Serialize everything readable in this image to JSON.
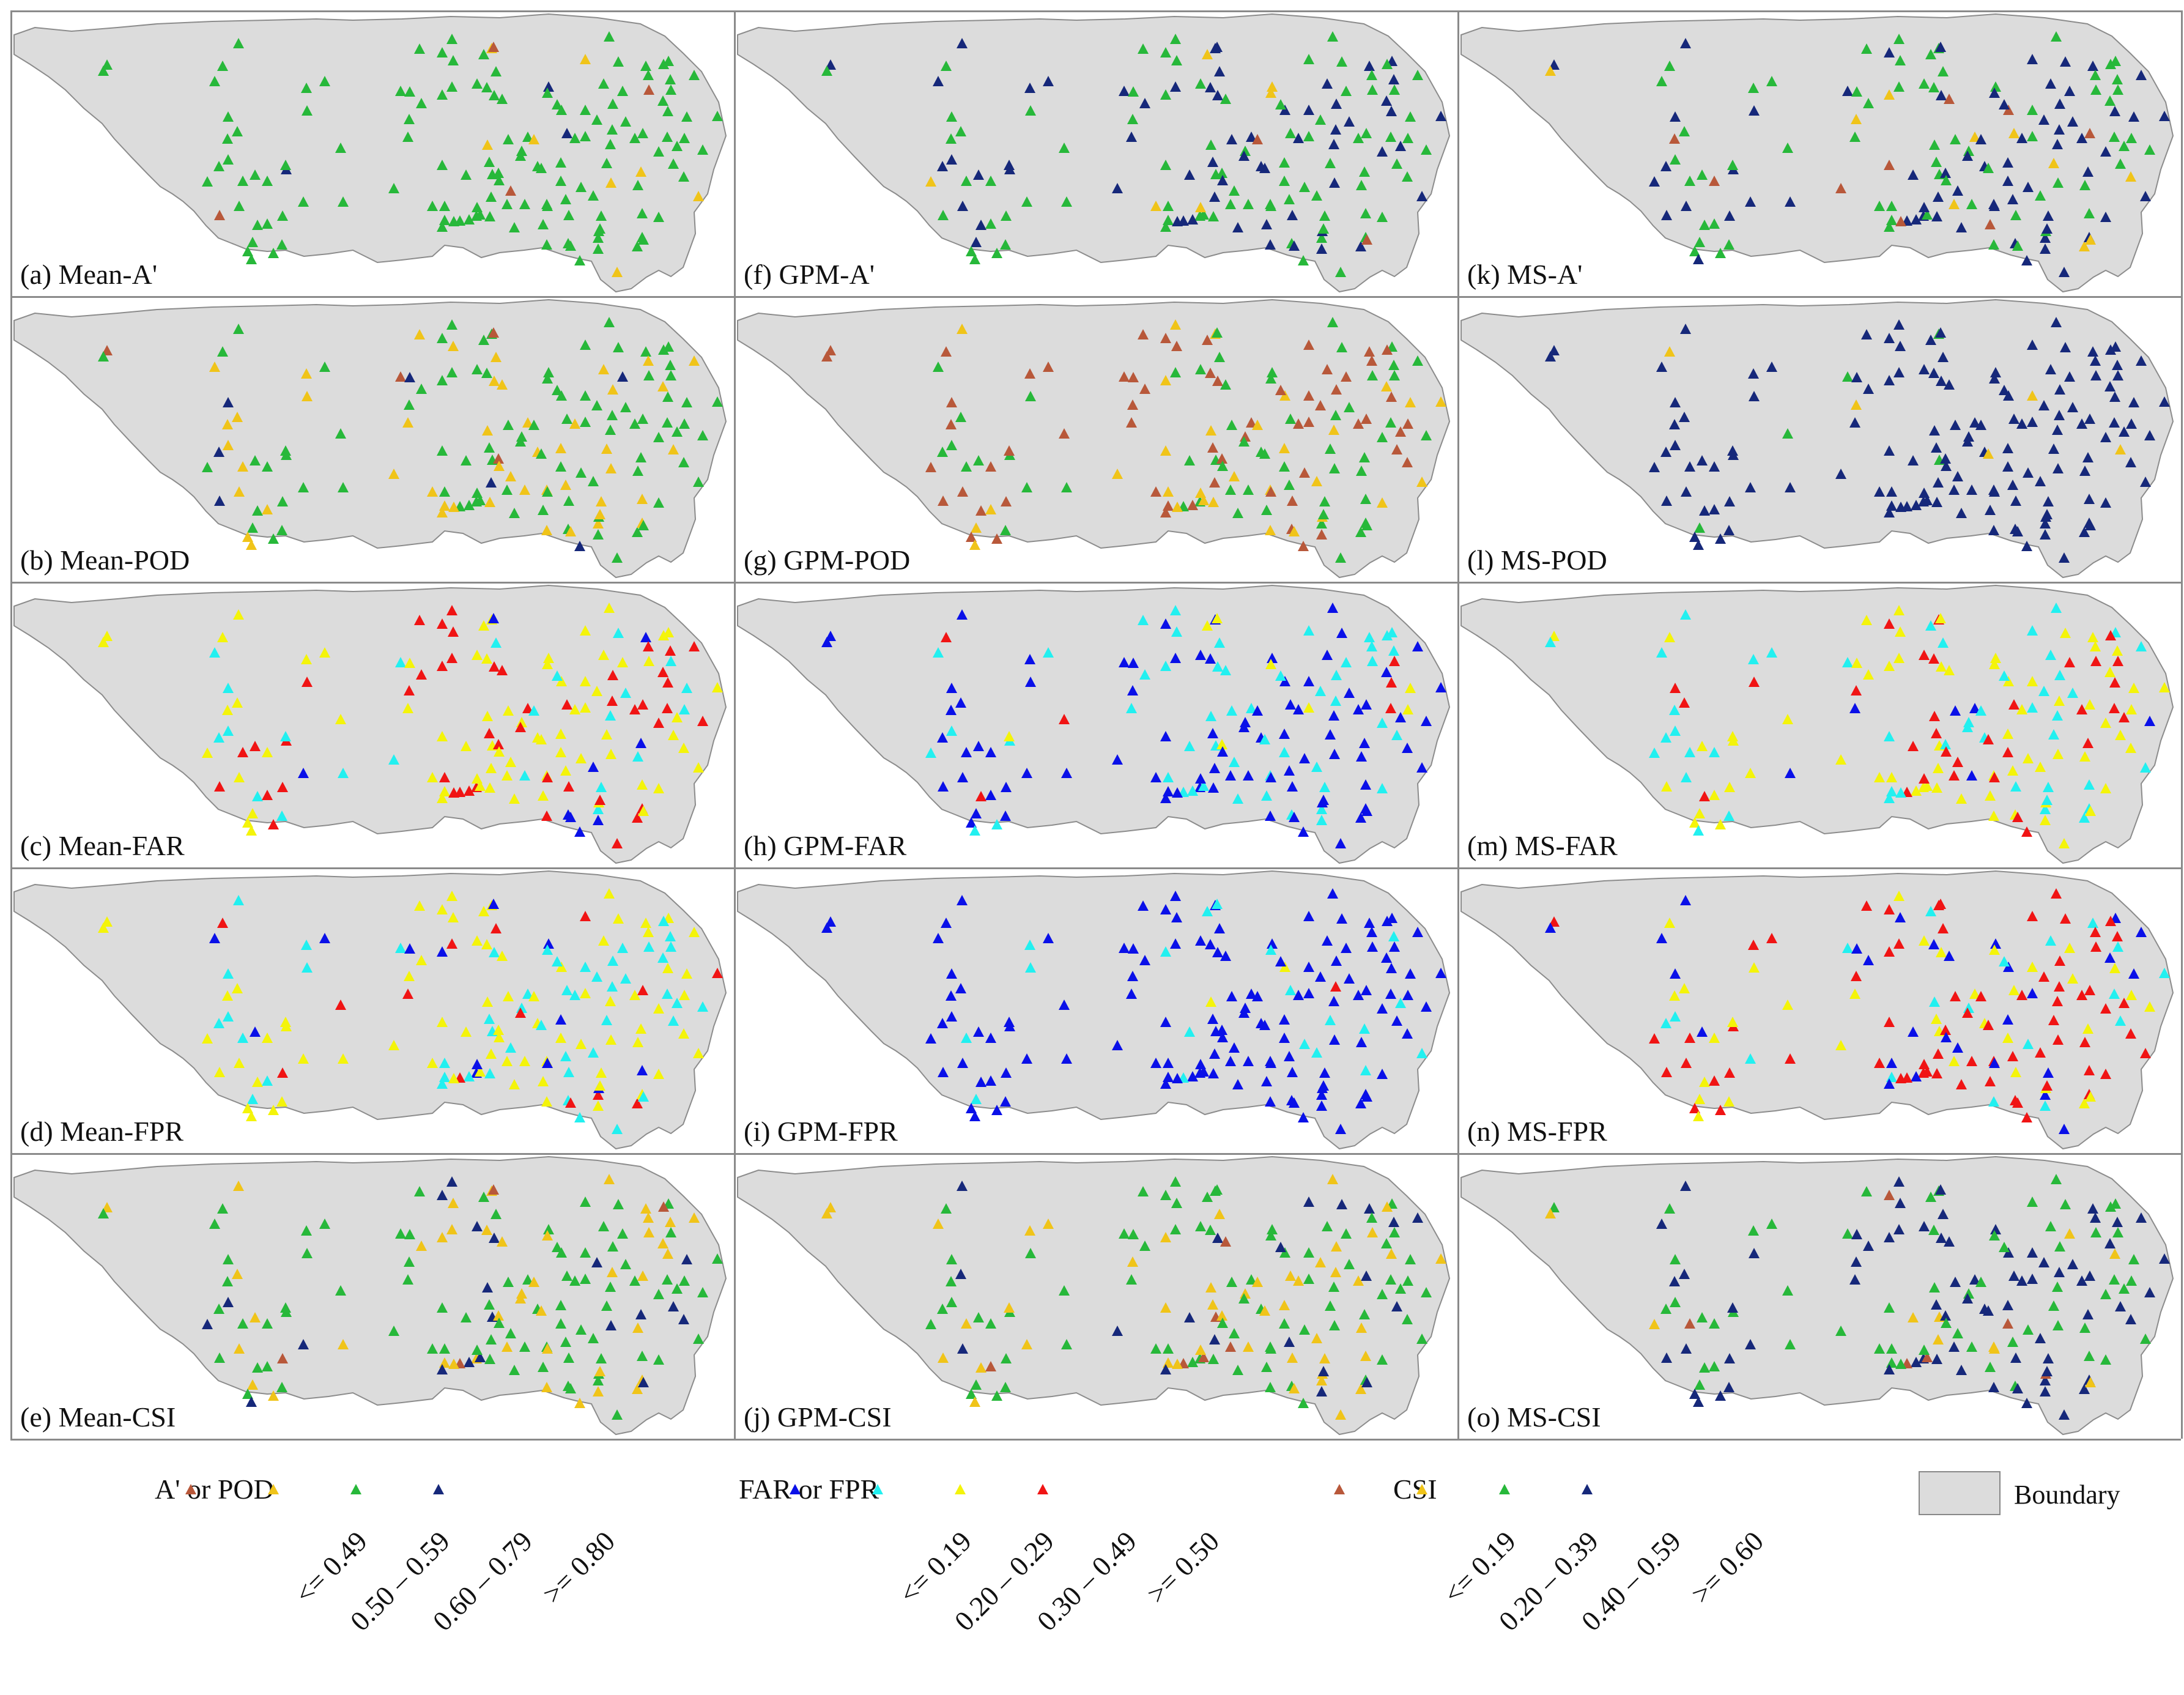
{
  "panels": [
    {
      "id": "a",
      "label": "(a) Mean-A'",
      "scheme": "ap",
      "seed": 11,
      "weights": [
        0.03,
        0.06,
        0.86,
        0.05
      ]
    },
    {
      "id": "f",
      "label": "(f) GPM-A'",
      "scheme": "ap",
      "seed": 12,
      "weights": [
        0.04,
        0.03,
        0.55,
        0.38
      ]
    },
    {
      "id": "k",
      "label": "(k) MS-A'",
      "scheme": "ap",
      "seed": 13,
      "weights": [
        0.05,
        0.06,
        0.47,
        0.42
      ]
    },
    {
      "id": "b",
      "label": "(b) Mean-POD",
      "scheme": "ap",
      "seed": 21,
      "weights": [
        0.04,
        0.32,
        0.58,
        0.06
      ]
    },
    {
      "id": "g",
      "label": "(g) GPM-POD",
      "scheme": "ap",
      "seed": 22,
      "weights": [
        0.45,
        0.22,
        0.33,
        0.0
      ]
    },
    {
      "id": "l",
      "label": "(l) MS-POD",
      "scheme": "ap",
      "seed": 23,
      "weights": [
        0.0,
        0.03,
        0.04,
        0.93
      ]
    },
    {
      "id": "c",
      "label": "(c) Mean-FAR",
      "scheme": "far",
      "seed": 31,
      "weights": [
        0.06,
        0.14,
        0.52,
        0.28
      ]
    },
    {
      "id": "h",
      "label": "(h) GPM-FAR",
      "scheme": "far",
      "seed": 32,
      "weights": [
        0.58,
        0.33,
        0.04,
        0.05
      ]
    },
    {
      "id": "m",
      "label": "(m) MS-FAR",
      "scheme": "far",
      "seed": 33,
      "weights": [
        0.05,
        0.32,
        0.45,
        0.18
      ]
    },
    {
      "id": "d",
      "label": "(d) Mean-FPR",
      "scheme": "far",
      "seed": 41,
      "weights": [
        0.06,
        0.37,
        0.49,
        0.08
      ]
    },
    {
      "id": "i",
      "label": "(i) GPM-FPR",
      "scheme": "far",
      "seed": 42,
      "weights": [
        0.84,
        0.11,
        0.03,
        0.02
      ]
    },
    {
      "id": "n",
      "label": "(n) MS-FPR",
      "scheme": "far",
      "seed": 43,
      "weights": [
        0.17,
        0.13,
        0.22,
        0.48
      ]
    },
    {
      "id": "e",
      "label": "(e) Mean-CSI",
      "scheme": "csi",
      "seed": 51,
      "weights": [
        0.03,
        0.32,
        0.57,
        0.08
      ]
    },
    {
      "id": "j",
      "label": "(j) GPM-CSI",
      "scheme": "csi",
      "seed": 52,
      "weights": [
        0.03,
        0.36,
        0.54,
        0.07
      ]
    },
    {
      "id": "o",
      "label": "(o) MS-CSI",
      "scheme": "csi",
      "seed": 53,
      "weights": [
        0.04,
        0.07,
        0.43,
        0.46
      ]
    }
  ],
  "legend": {
    "groups": [
      {
        "title": "A' or POD",
        "colors": [
          "#b8583a",
          "#f0c419",
          "#27b83a",
          "#16287a"
        ],
        "classes": [
          "<= 0.49",
          "0.50 – 0.59",
          "0.60 – 0.79",
          ">= 0.80"
        ]
      },
      {
        "title": "FAR or FPR",
        "colors": [
          "#0a10e8",
          "#22f0f0",
          "#f4f40a",
          "#f01414"
        ],
        "classes": [
          "<= 0.19",
          "0.20 – 0.29",
          "0.30 – 0.49",
          ">= 0.50"
        ]
      },
      {
        "title": "CSI",
        "colors": [
          "#b8583a",
          "#f0c419",
          "#27b83a",
          "#16287a"
        ],
        "classes": [
          "<= 0.19",
          "0.20 – 0.39",
          "0.40 – 0.59",
          ">= 0.60"
        ]
      }
    ],
    "boundary_label": "Boundary",
    "boundary_color": "#dcdcdc"
  }
}
